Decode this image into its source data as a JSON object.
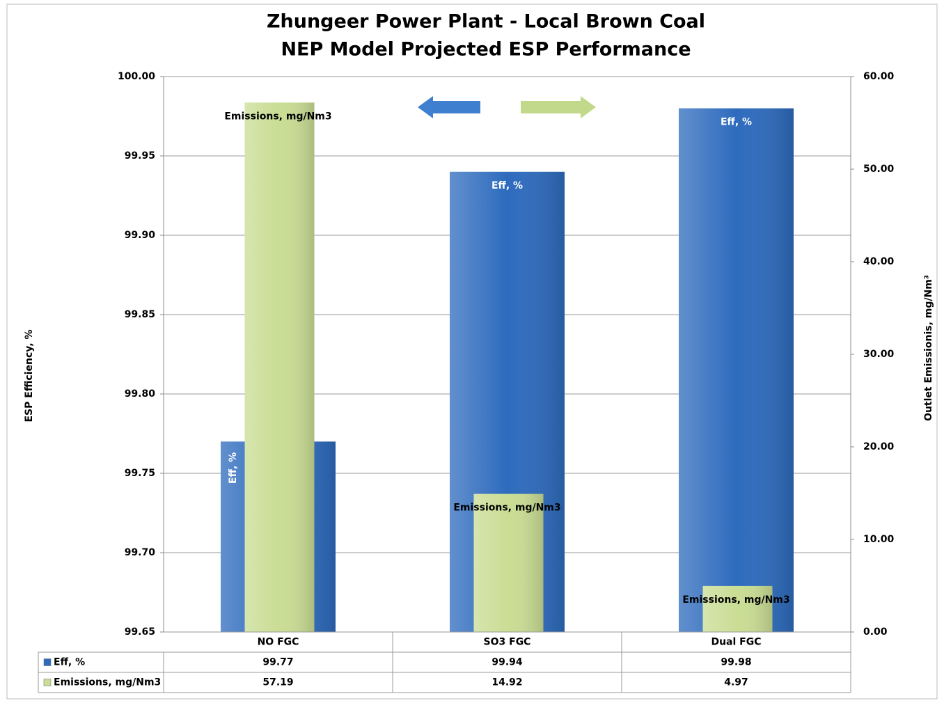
{
  "chart_data": {
    "type": "bar",
    "title": "Zhungeer Power Plant  - Local Brown Coal",
    "subtitle": "NEP Model Projected ESP Performance",
    "y_label": "ESP Efficiency, %",
    "y2_label": "Outlet Emissionis, mg/Nm³",
    "categories": [
      "NO FGC",
      "SO3 FGC",
      "Dual FGC"
    ],
    "series": [
      {
        "name": "Eff, %",
        "color": "#2e6bbd",
        "values": [
          99.77,
          99.94,
          99.98
        ]
      },
      {
        "name": "Emissions, mg/Nm3",
        "color": "#c9dd94",
        "values": [
          57.19,
          14.92,
          4.97
        ],
        "axis": "y2"
      }
    ],
    "ylim": [
      99.65,
      100
    ],
    "yticks": [
      {
        "value": 99.65,
        "label": "99.65"
      },
      {
        "value": 99.7,
        "label": "99.70"
      },
      {
        "value": 99.75,
        "label": "99.75"
      },
      {
        "value": 99.8,
        "label": "99.80"
      },
      {
        "value": 99.85,
        "label": "99.85"
      },
      {
        "value": 99.9,
        "label": "99.90"
      },
      {
        "value": 99.95,
        "label": "99.95"
      },
      {
        "value": 100,
        "label": "100.00"
      }
    ],
    "y2lim": [
      0,
      60
    ],
    "y2ticks": [
      {
        "value": 0,
        "label": "0.00"
      },
      {
        "value": 10,
        "label": "10.00"
      },
      {
        "value": 20,
        "label": "20.00"
      },
      {
        "value": 30,
        "label": "30.00"
      },
      {
        "value": 40,
        "label": "40.00"
      },
      {
        "value": 50,
        "label": "50.00"
      },
      {
        "value": 60,
        "label": "60.00"
      }
    ],
    "grid": true,
    "data_table": true
  }
}
